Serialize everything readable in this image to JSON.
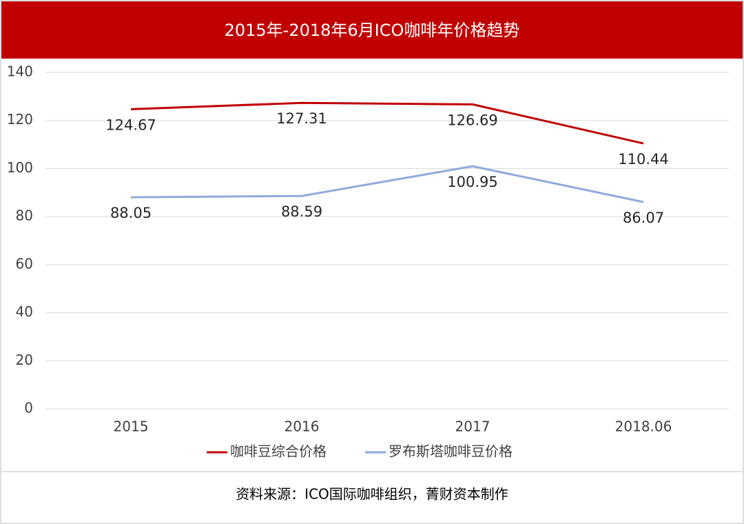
{
  "chart_data": {
    "type": "line",
    "title": "2015年-2018年6月ICO咖啡年价格趋势",
    "categories": [
      "2015",
      "2016",
      "2017",
      "2018.06"
    ],
    "series": [
      {
        "name": "咖啡豆综合价格",
        "color": "#c00000",
        "values": [
          124.67,
          127.31,
          126.69,
          110.44
        ]
      },
      {
        "name": "罗布斯塔咖啡豆价格",
        "color": "#8faadc",
        "values": [
          88.05,
          88.59,
          100.95,
          86.07
        ]
      }
    ],
    "ylim": [
      0,
      140
    ],
    "yticks": [
      0,
      20,
      40,
      60,
      80,
      100,
      120,
      140
    ],
    "grid": true,
    "source": "资料来源：ICO国际咖啡组织，菁财资本制作"
  }
}
